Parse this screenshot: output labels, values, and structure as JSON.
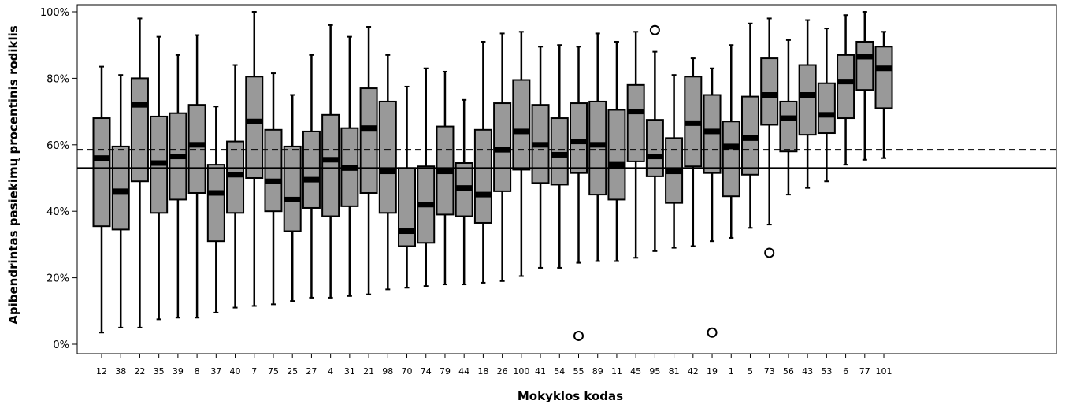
{
  "chart_data": {
    "type": "boxplot",
    "xlabel": "Mokyklos kodas",
    "ylabel": "Apibendrintas pasiekimų procentinis rodiklis",
    "yticks": [
      "0%",
      "20%",
      "40%",
      "60%",
      "80%",
      "100%"
    ],
    "ylim": [
      0,
      100
    ],
    "reference_lines": [
      {
        "style": "solid",
        "value": 53
      },
      {
        "style": "dashed",
        "value": 58.5
      }
    ],
    "categories": [
      "12",
      "38",
      "22",
      "35",
      "39",
      "8",
      "37",
      "40",
      "7",
      "75",
      "25",
      "27",
      "4",
      "31",
      "21",
      "98",
      "70",
      "74",
      "79",
      "44",
      "18",
      "26",
      "100",
      "41",
      "54",
      "55",
      "89",
      "11",
      "45",
      "95",
      "81",
      "42",
      "19",
      "1",
      "5",
      "73",
      "56",
      "43",
      "53",
      "6",
      "77",
      "101"
    ],
    "boxes": [
      {
        "min": 3.5,
        "q1": 35.5,
        "median": 56,
        "q3": 68,
        "max": 83.5,
        "outliers": []
      },
      {
        "min": 5,
        "q1": 34.5,
        "median": 46,
        "q3": 59.5,
        "max": 81,
        "outliers": []
      },
      {
        "min": 5,
        "q1": 49,
        "median": 72,
        "q3": 80,
        "max": 98,
        "outliers": []
      },
      {
        "min": 7.5,
        "q1": 39.5,
        "median": 54.5,
        "q3": 68.5,
        "max": 92.5,
        "outliers": []
      },
      {
        "min": 8,
        "q1": 43.5,
        "median": 56.5,
        "q3": 69.5,
        "max": 87,
        "outliers": []
      },
      {
        "min": 8,
        "q1": 45.5,
        "median": 60,
        "q3": 72,
        "max": 93,
        "outliers": []
      },
      {
        "min": 9.5,
        "q1": 31,
        "median": 45.5,
        "q3": 54,
        "max": 71.5,
        "outliers": []
      },
      {
        "min": 11,
        "q1": 39.5,
        "median": 51,
        "q3": 61,
        "max": 84,
        "outliers": []
      },
      {
        "min": 11.5,
        "q1": 50,
        "median": 67,
        "q3": 80.5,
        "max": 100,
        "outliers": []
      },
      {
        "min": 12,
        "q1": 40,
        "median": 49,
        "q3": 64.5,
        "max": 81.5,
        "outliers": []
      },
      {
        "min": 13,
        "q1": 34,
        "median": 43.5,
        "q3": 59.5,
        "max": 75,
        "outliers": []
      },
      {
        "min": 14,
        "q1": 41,
        "median": 49.5,
        "q3": 64,
        "max": 87,
        "outliers": []
      },
      {
        "min": 14,
        "q1": 38.5,
        "median": 55.5,
        "q3": 69,
        "max": 96,
        "outliers": []
      },
      {
        "min": 14.5,
        "q1": 41.5,
        "median": 53,
        "q3": 65,
        "max": 92.5,
        "outliers": []
      },
      {
        "min": 15,
        "q1": 45.5,
        "median": 65,
        "q3": 77,
        "max": 95.5,
        "outliers": []
      },
      {
        "min": 16.5,
        "q1": 39.5,
        "median": 52,
        "q3": 73,
        "max": 87,
        "outliers": []
      },
      {
        "min": 17,
        "q1": 29.5,
        "median": 34,
        "q3": 53,
        "max": 77.5,
        "outliers": []
      },
      {
        "min": 17.5,
        "q1": 30.5,
        "median": 42,
        "q3": 53.5,
        "max": 83,
        "outliers": []
      },
      {
        "min": 18,
        "q1": 39,
        "median": 52,
        "q3": 65.5,
        "max": 82,
        "outliers": []
      },
      {
        "min": 18,
        "q1": 38.5,
        "median": 47,
        "q3": 54.5,
        "max": 73.5,
        "outliers": []
      },
      {
        "min": 18.5,
        "q1": 36.5,
        "median": 45,
        "q3": 64.5,
        "max": 91,
        "outliers": []
      },
      {
        "min": 19,
        "q1": 46,
        "median": 58.5,
        "q3": 72.5,
        "max": 93.5,
        "outliers": []
      },
      {
        "min": 20.5,
        "q1": 52.5,
        "median": 64,
        "q3": 79.5,
        "max": 94,
        "outliers": []
      },
      {
        "min": 23,
        "q1": 48.5,
        "median": 60,
        "q3": 72,
        "max": 89.5,
        "outliers": []
      },
      {
        "min": 23,
        "q1": 48,
        "median": 57,
        "q3": 68,
        "max": 90,
        "outliers": []
      },
      {
        "min": 24.5,
        "q1": 51.5,
        "median": 61,
        "q3": 72.5,
        "max": 89.5,
        "outliers": [
          2.5
        ]
      },
      {
        "min": 25,
        "q1": 45,
        "median": 60,
        "q3": 73,
        "max": 93.5,
        "outliers": []
      },
      {
        "min": 25,
        "q1": 43.5,
        "median": 54,
        "q3": 70.5,
        "max": 91,
        "outliers": []
      },
      {
        "min": 26,
        "q1": 55,
        "median": 70,
        "q3": 78,
        "max": 94,
        "outliers": []
      },
      {
        "min": 28,
        "q1": 50.5,
        "median": 56.5,
        "q3": 67.5,
        "max": 88,
        "outliers": [
          94.5
        ]
      },
      {
        "min": 29,
        "q1": 42.5,
        "median": 52,
        "q3": 62,
        "max": 81,
        "outliers": []
      },
      {
        "min": 29.5,
        "q1": 53.5,
        "median": 66.5,
        "q3": 80.5,
        "max": 86,
        "outliers": []
      },
      {
        "min": 31,
        "q1": 51.5,
        "median": 64,
        "q3": 75,
        "max": 83,
        "outliers": [
          3.5
        ]
      },
      {
        "min": 32,
        "q1": 44.5,
        "median": 59.5,
        "q3": 67,
        "max": 90,
        "outliers": []
      },
      {
        "min": 35,
        "q1": 51,
        "median": 62,
        "q3": 74.5,
        "max": 96.5,
        "outliers": []
      },
      {
        "min": 36,
        "q1": 66,
        "median": 75,
        "q3": 86,
        "max": 98,
        "outliers": [
          27.5
        ]
      },
      {
        "min": 45,
        "q1": 58,
        "median": 68,
        "q3": 73,
        "max": 91.5,
        "outliers": []
      },
      {
        "min": 47,
        "q1": 63,
        "median": 75,
        "q3": 84,
        "max": 97.5,
        "outliers": []
      },
      {
        "min": 49,
        "q1": 63.5,
        "median": 69,
        "q3": 78.5,
        "max": 95,
        "outliers": []
      },
      {
        "min": 54,
        "q1": 68,
        "median": 79,
        "q3": 87,
        "max": 99,
        "outliers": []
      },
      {
        "min": 55.5,
        "q1": 76.5,
        "median": 86.5,
        "q3": 91,
        "max": 100,
        "outliers": []
      },
      {
        "min": 56,
        "q1": 71,
        "median": 83,
        "q3": 89.5,
        "max": 94,
        "outliers": []
      }
    ],
    "colors": {
      "box_fill": "#999999",
      "stroke": "#000000",
      "median": "#000000"
    },
    "grid": false,
    "legend": "none"
  }
}
